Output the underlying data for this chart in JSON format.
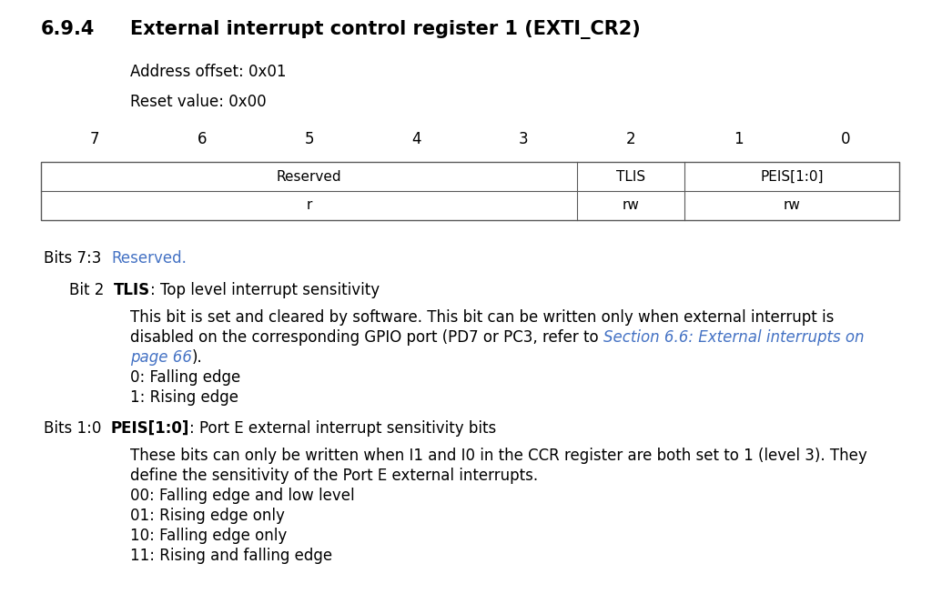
{
  "bg_color": "#ffffff",
  "section_number": "6.9.4",
  "title": "External interrupt control register 1 (EXTI_CR2)",
  "address_offset": "Address offset: 0x01",
  "reset_value": "Reset value: 0x00",
  "link_color": "#4472C4",
  "text_color": "#000000",
  "table_border_color": "#5a5a5a",
  "fig_w": 10.24,
  "fig_h": 6.64,
  "dpi": 100
}
